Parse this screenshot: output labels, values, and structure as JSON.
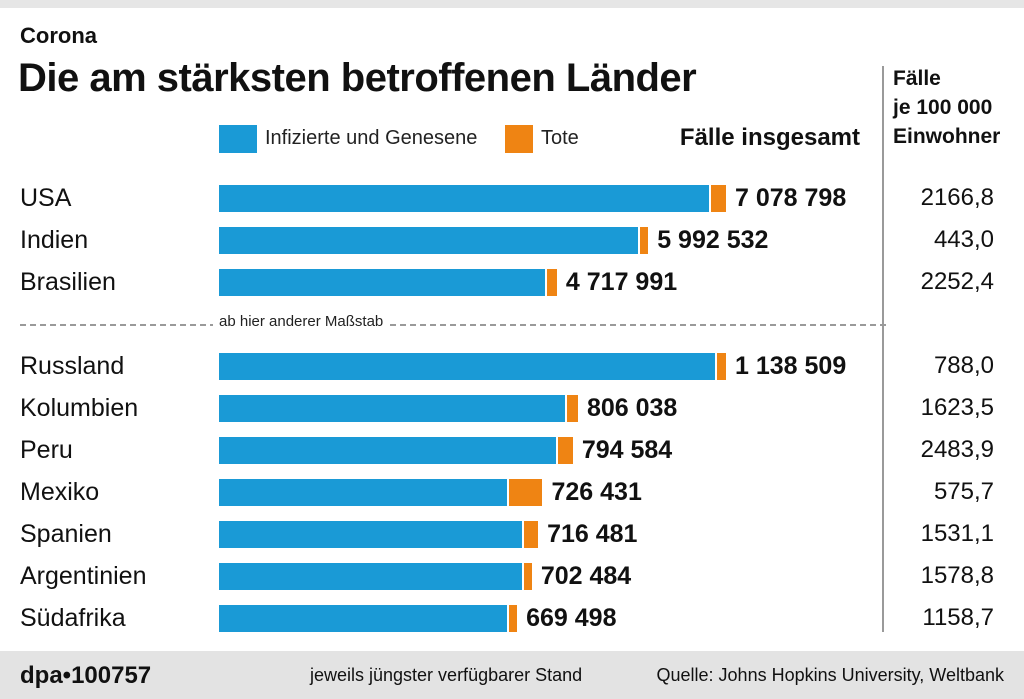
{
  "kicker": "Corona",
  "title": "Die am stärksten betroffenen Länder",
  "legend": {
    "infected_label": "Infizierte und Genesene",
    "deaths_label": "Tote",
    "infected_color": "#1a9ad6",
    "deaths_color": "#ef8413"
  },
  "total_header": "Fälle insgesamt",
  "rate_header": [
    "Fälle",
    "je 100 000",
    "Einwohner"
  ],
  "scale_note": "ab hier anderer Maßstab",
  "footer": {
    "credit": "dpa•100757",
    "stand": "jeweils jüngster verfügbarer Stand",
    "source": "Quelle: Johns Hopkins University, Weltbank"
  },
  "chart_data": {
    "type": "bar",
    "orientation": "horizontal",
    "stacked": true,
    "legend_position": "top",
    "series_names": [
      "Infizierte und Genesene",
      "Tote"
    ],
    "groups": [
      {
        "scale_max": 7078798,
        "rows": [
          {
            "country": "USA",
            "total": 7078798,
            "total_label": "7 078 798",
            "deaths_share": 0.029,
            "rate": "2166,8"
          },
          {
            "country": "Indien",
            "total": 5992532,
            "total_label": "5 992 532",
            "deaths_share": 0.016,
            "rate": "443,0"
          },
          {
            "country": "Brasilien",
            "total": 4717991,
            "total_label": "4 717 991",
            "deaths_share": 0.03,
            "rate": "2252,4"
          }
        ]
      },
      {
        "scale_max": 1138509,
        "rows": [
          {
            "country": "Russland",
            "total": 1138509,
            "total_label": "1 138 509",
            "deaths_share": 0.018,
            "rate": "788,0"
          },
          {
            "country": "Kolumbien",
            "total": 806038,
            "total_label": "806 038",
            "deaths_share": 0.031,
            "rate": "1623,5"
          },
          {
            "country": "Peru",
            "total": 794584,
            "total_label": "794 584",
            "deaths_share": 0.042,
            "rate": "2483,9"
          },
          {
            "country": "Mexiko",
            "total": 726431,
            "total_label": "726 431",
            "deaths_share": 0.104,
            "rate": "575,7"
          },
          {
            "country": "Spanien",
            "total": 716481,
            "total_label": "716 481",
            "deaths_share": 0.045,
            "rate": "1531,1"
          },
          {
            "country": "Argentinien",
            "total": 702484,
            "total_label": "702 484",
            "deaths_share": 0.022,
            "rate": "1578,8"
          },
          {
            "country": "Südafrika",
            "total": 669498,
            "total_label": "669 498",
            "deaths_share": 0.025,
            "rate": "1158,7"
          }
        ]
      }
    ]
  }
}
